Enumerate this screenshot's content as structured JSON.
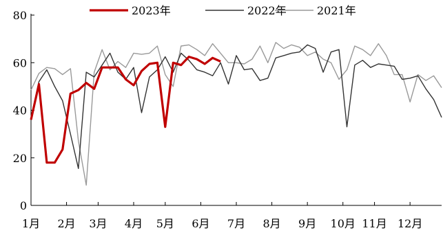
{
  "chart_data": {
    "type": "line",
    "ylim": [
      0,
      80
    ],
    "yticks": [
      0,
      20,
      40,
      60,
      80
    ],
    "xlim": [
      0,
      52
    ],
    "month_ticks": [
      {
        "label": "1月",
        "x": 0
      },
      {
        "label": "2月",
        "x": 4.5
      },
      {
        "label": "3月",
        "x": 8.5
      },
      {
        "label": "4月",
        "x": 13
      },
      {
        "label": "5月",
        "x": 17
      },
      {
        "label": "6月",
        "x": 21.5
      },
      {
        "label": "7月",
        "x": 26
      },
      {
        "label": "8月",
        "x": 30.5
      },
      {
        "label": "9月",
        "x": 35
      },
      {
        "label": "10月",
        "x": 39.5
      },
      {
        "label": "11月",
        "x": 43.5
      },
      {
        "label": "12月",
        "x": 48
      }
    ],
    "legend_position": "top-center",
    "grid": false,
    "series": [
      {
        "name": "2023年",
        "color": "#c00000",
        "width": 3.2,
        "values": [
          36,
          51,
          18,
          18,
          23.5,
          47,
          48.5,
          51.5,
          49,
          58,
          58,
          58,
          53,
          50.5,
          56.5,
          59.5,
          60,
          33,
          60,
          59,
          62.5,
          61.5,
          59.5,
          62,
          60.5
        ]
      },
      {
        "name": "2022年",
        "color": "#333333",
        "width": 1.4,
        "values": [
          37,
          52,
          57,
          50,
          44,
          30,
          15.5,
          56,
          54,
          59,
          64,
          56,
          53,
          58,
          39,
          54,
          57,
          62.5,
          56,
          64,
          61,
          57,
          56,
          54.5,
          60,
          51,
          63,
          57,
          57.5,
          52.5,
          53.5,
          62,
          63,
          64,
          64.5,
          67.5,
          66,
          56,
          64.5,
          65.5,
          33,
          59,
          61,
          58,
          59.5,
          59,
          58.5,
          53,
          53.5,
          54.5,
          49,
          44.5,
          37
        ]
      },
      {
        "name": "2021年",
        "color": "#999999",
        "width": 1.4,
        "values": [
          48.5,
          55.5,
          58,
          57.5,
          55,
          57.5,
          27,
          8.5,
          56,
          65.5,
          57,
          60.5,
          58,
          64,
          63.5,
          64,
          67,
          55,
          50,
          67,
          67.5,
          65.5,
          63,
          68,
          64,
          60,
          60,
          59.5,
          61.5,
          67,
          60,
          68.5,
          66,
          67.5,
          66.5,
          63,
          64.5,
          61.5,
          60,
          53,
          57,
          67,
          65.5,
          63,
          68,
          63,
          55,
          55,
          43.5,
          55,
          52.5,
          54.5,
          49.5
        ]
      }
    ]
  }
}
